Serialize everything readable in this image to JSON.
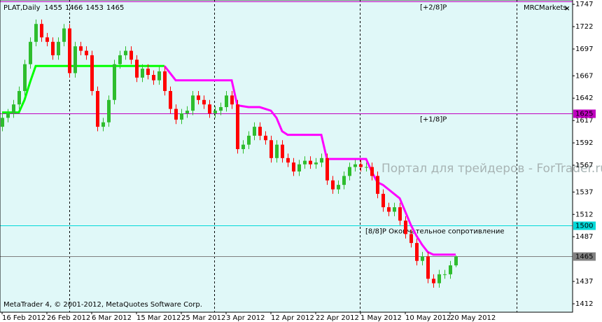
{
  "chart_data": {
    "type": "candlestick",
    "title": "PLAT,Daily",
    "background": "#e0f8f8",
    "up_color": "#2ebd2e",
    "down_color": "#ff0000",
    "categories": [
      "16 Feb 2012",
      null,
      null,
      null,
      null,
      null,
      null,
      null,
      "26 Feb 2012",
      null,
      null,
      null,
      null,
      null,
      null,
      null,
      "6 Mar 2012",
      null,
      null,
      null,
      null,
      null,
      null,
      null,
      "15 Mar 2012",
      null,
      null,
      null,
      null,
      null,
      null,
      null,
      "25 Mar 2012",
      null,
      null,
      null,
      null,
      null,
      null,
      null,
      "3 Apr 2012",
      null,
      null,
      null,
      null,
      null,
      null,
      null,
      "12 Apr 2012",
      null,
      null,
      null,
      null,
      null,
      null,
      null,
      "22 Apr 2012",
      null,
      null,
      null,
      null,
      null,
      null,
      null,
      "1 May 2012",
      null,
      null,
      null,
      null,
      null,
      null,
      null,
      "10 May 2012",
      null,
      null,
      null,
      null,
      null,
      null,
      null,
      "20 May 2012",
      null
    ],
    "open": [
      1610,
      1620,
      1625,
      1635,
      1650,
      1680,
      1705,
      1725,
      1710,
      1705,
      1690,
      1705,
      1720,
      1670,
      1700,
      1695,
      1690,
      1650,
      1610,
      1615,
      1640,
      1680,
      1690,
      1695,
      1685,
      1665,
      1675,
      1668,
      1662,
      1672,
      1650,
      1630,
      1618,
      1625,
      1628,
      1645,
      1640,
      1635,
      1625,
      1628,
      1632,
      1645,
      1635,
      1585,
      1590,
      1600,
      1610,
      1600,
      1595,
      1575,
      1590,
      1575,
      1570,
      1560,
      1568,
      1572,
      1568,
      1570,
      1575,
      1550,
      1540,
      1545,
      1555,
      1565,
      1568,
      1565,
      1565,
      1555,
      1535,
      1520,
      1515,
      1520,
      1505,
      1490,
      1480,
      1460,
      1465,
      1440,
      1435,
      1445,
      1445,
      1455
    ],
    "high": [
      1625,
      1630,
      1640,
      1655,
      1685,
      1710,
      1730,
      1730,
      1715,
      1710,
      1710,
      1725,
      1725,
      1705,
      1705,
      1700,
      1695,
      1655,
      1620,
      1645,
      1685,
      1695,
      1700,
      1700,
      1690,
      1680,
      1680,
      1673,
      1677,
      1677,
      1655,
      1635,
      1630,
      1633,
      1650,
      1650,
      1645,
      1640,
      1633,
      1637,
      1650,
      1650,
      1640,
      1595,
      1605,
      1615,
      1615,
      1605,
      1600,
      1595,
      1595,
      1580,
      1575,
      1573,
      1577,
      1577,
      1575,
      1580,
      1580,
      1555,
      1550,
      1560,
      1570,
      1573,
      1573,
      1570,
      1570,
      1560,
      1540,
      1525,
      1525,
      1525,
      1510,
      1495,
      1485,
      1470,
      1470,
      1445,
      1450,
      1450,
      1460,
      1466
    ],
    "low": [
      1605,
      1615,
      1620,
      1630,
      1645,
      1675,
      1700,
      1705,
      1700,
      1685,
      1685,
      1700,
      1665,
      1665,
      1690,
      1685,
      1645,
      1605,
      1605,
      1610,
      1635,
      1675,
      1685,
      1680,
      1660,
      1660,
      1663,
      1657,
      1657,
      1645,
      1625,
      1613,
      1613,
      1620,
      1623,
      1635,
      1630,
      1620,
      1620,
      1623,
      1627,
      1630,
      1580,
      1580,
      1585,
      1595,
      1595,
      1590,
      1570,
      1570,
      1570,
      1565,
      1555,
      1555,
      1563,
      1563,
      1563,
      1565,
      1545,
      1535,
      1535,
      1540,
      1550,
      1560,
      1560,
      1560,
      1550,
      1530,
      1515,
      1510,
      1510,
      1500,
      1485,
      1475,
      1455,
      1455,
      1435,
      1430,
      1430,
      1440,
      1440,
      1453
    ],
    "close": [
      1620,
      1625,
      1635,
      1650,
      1680,
      1705,
      1725,
      1710,
      1705,
      1690,
      1705,
      1720,
      1670,
      1700,
      1695,
      1690,
      1650,
      1610,
      1615,
      1640,
      1680,
      1690,
      1695,
      1685,
      1665,
      1675,
      1668,
      1662,
      1672,
      1650,
      1630,
      1618,
      1625,
      1628,
      1645,
      1640,
      1635,
      1625,
      1628,
      1632,
      1645,
      1635,
      1585,
      1590,
      1600,
      1610,
      1600,
      1595,
      1575,
      1590,
      1575,
      1570,
      1560,
      1568,
      1572,
      1568,
      1570,
      1575,
      1550,
      1540,
      1545,
      1555,
      1565,
      1568,
      1565,
      1565,
      1555,
      1535,
      1520,
      1515,
      1520,
      1505,
      1490,
      1480,
      1460,
      1465,
      1440,
      1435,
      1445,
      1445,
      1455,
      1465
    ],
    "lines": [
      {
        "color": "#00ff00",
        "values": [
          1626,
          1626,
          1626,
          1626,
          1640,
          1660,
          1678,
          1678,
          1678,
          1678,
          1678,
          1678,
          1678,
          1678,
          1678,
          1678,
          1678,
          1678,
          1678,
          1678,
          1678,
          1678,
          1678,
          1678,
          1678,
          1678,
          1678,
          1678,
          1678,
          1678,
          null,
          null,
          null,
          null,
          null,
          null,
          null,
          null,
          null,
          null,
          null,
          null,
          null,
          null,
          null,
          null,
          null,
          null,
          null,
          null,
          null,
          null,
          null,
          null,
          null,
          null,
          null,
          null,
          null,
          null,
          null,
          null,
          null,
          null,
          null,
          null,
          null,
          null,
          null,
          null,
          null,
          null,
          null,
          null,
          null,
          null,
          null,
          null,
          null,
          null,
          null,
          null
        ]
      },
      {
        "color": "#ff00ff",
        "values": [
          null,
          null,
          null,
          null,
          null,
          null,
          null,
          null,
          null,
          null,
          null,
          null,
          null,
          null,
          null,
          null,
          null,
          null,
          null,
          null,
          null,
          null,
          null,
          null,
          null,
          null,
          null,
          null,
          null,
          1678,
          1670,
          1662,
          1662,
          1662,
          1662,
          1662,
          1662,
          1662,
          1662,
          1662,
          1662,
          1662,
          1634,
          1633,
          1632,
          1632,
          1632,
          1630,
          1628,
          1620,
          1605,
          1601,
          1601,
          1601,
          1601,
          1601,
          1601,
          1601,
          1574,
          1574,
          1574,
          1574,
          1574,
          1574,
          1574,
          1574,
          1560,
          1548,
          1545,
          1540,
          1535,
          1530,
          1515,
          1500,
          1488,
          1478,
          1470,
          1467,
          1467,
          1467,
          1467,
          1467
        ]
      }
    ],
    "levels": [
      {
        "value": 1750,
        "label": "[+2/8]P",
        "color": "#c000c0"
      },
      {
        "value": 1625,
        "label": "[+1/8]P",
        "color": "#c000c0",
        "box": true
      },
      {
        "value": 1500,
        "label": "[8/8]P Окончательное сопротивление",
        "color": "#00d8d8",
        "box": true
      },
      {
        "value": 1465,
        "color": "#808080",
        "box": true
      }
    ],
    "ylim": [
      1402.6,
      1751.8
    ],
    "yticks": [
      1412,
      1437,
      1487,
      1512,
      1537,
      1567,
      1592,
      1617,
      1642,
      1667,
      1697,
      1722,
      1747
    ],
    "grid": false,
    "indicator": "MRCMarkets",
    "watermark": "Портал для трейдеров - ForTrader.ru",
    "copyright": "MetaTrader 4, © 2001-2012, MetaQuotes Software Corp."
  }
}
